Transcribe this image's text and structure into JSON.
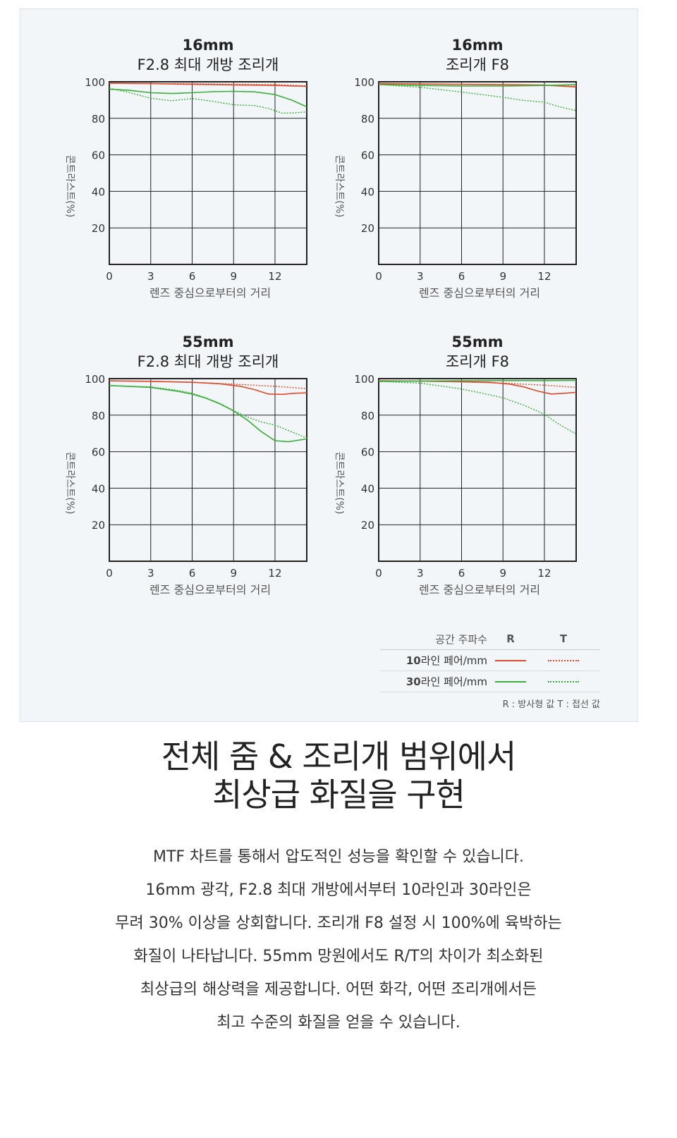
{
  "colors": {
    "red": "#e04a2a",
    "green": "#3aae3a",
    "grid": "#222222",
    "panel_bg": "#f3f6f9"
  },
  "chart_data": [
    {
      "type": "line",
      "title": "16mm",
      "subtitle": "F2.8 최대 개방 조리개",
      "xlabel": "렌즈 중심으로부터의 거리",
      "ylabel": "콘트라스트(%)",
      "xlim": [
        0,
        14.3
      ],
      "ylim": [
        0,
        100
      ],
      "xticks": [
        0,
        3,
        6,
        9,
        12
      ],
      "yticks": [
        20,
        40,
        60,
        80,
        100
      ],
      "series": [
        {
          "legend": "10라인 페어/mm R",
          "color": "red",
          "style": "solid",
          "x": [
            0,
            3,
            6,
            9,
            12,
            14.3
          ],
          "y": [
            99.2,
            99,
            98.6,
            98.3,
            98,
            97.5
          ]
        },
        {
          "legend": "10라인 페어/mm T",
          "color": "red",
          "style": "dotted",
          "x": [
            0,
            3,
            6,
            9,
            12,
            14.3
          ],
          "y": [
            99.2,
            99,
            98.9,
            98.6,
            98.4,
            97.8
          ]
        },
        {
          "legend": "30라인 페어/mm R",
          "color": "green",
          "style": "solid",
          "x": [
            0,
            1.5,
            3,
            4.5,
            6,
            7.5,
            9,
            10.5,
            12,
            13.2,
            14.3
          ],
          "y": [
            96,
            95.3,
            94,
            93.6,
            94,
            94.6,
            94.8,
            94.5,
            93,
            90,
            86.3
          ]
        },
        {
          "legend": "30라인 페어/mm T",
          "color": "green",
          "style": "dotted",
          "x": [
            0,
            1.5,
            3,
            4.5,
            6,
            7.5,
            9,
            10.5,
            11.5,
            12.5,
            13.5,
            14.3
          ],
          "y": [
            96.5,
            94,
            91,
            89.6,
            90.8,
            89.3,
            87.4,
            87,
            85.5,
            82.8,
            83,
            83.5
          ]
        }
      ]
    },
    {
      "type": "line",
      "title": "16mm",
      "subtitle": "조리개 F8",
      "xlabel": "렌즈 중심으로부터의 거리",
      "ylabel": "콘트라스트(%)",
      "xlim": [
        0,
        14.3
      ],
      "ylim": [
        0,
        100
      ],
      "xticks": [
        0,
        3,
        6,
        9,
        12
      ],
      "yticks": [
        20,
        40,
        60,
        80,
        100
      ],
      "series": [
        {
          "legend": "10라인 페어/mm R",
          "color": "red",
          "style": "solid",
          "x": [
            0,
            3,
            6,
            9,
            12,
            14.3
          ],
          "y": [
            99,
            98.8,
            98.6,
            98.4,
            98.2,
            97.2
          ]
        },
        {
          "legend": "10라인 페어/mm T",
          "color": "red",
          "style": "dotted",
          "x": [
            0,
            3,
            6,
            9,
            12,
            14.3
          ],
          "y": [
            99,
            98.8,
            98.5,
            98.3,
            98,
            97.5
          ]
        },
        {
          "legend": "30라인 페어/mm R",
          "color": "green",
          "style": "solid",
          "x": [
            0,
            3,
            6,
            9,
            12,
            14.3
          ],
          "y": [
            98.5,
            98,
            97.7,
            97.7,
            98,
            98.4
          ]
        },
        {
          "legend": "30라인 페어/mm T",
          "color": "green",
          "style": "dotted",
          "x": [
            0,
            3,
            6,
            9,
            10.5,
            12,
            13,
            14.3
          ],
          "y": [
            98.5,
            97,
            94.4,
            91.5,
            89.8,
            88.8,
            86.5,
            84.2
          ]
        }
      ]
    },
    {
      "type": "line",
      "title": "55mm",
      "subtitle": "F2.8 최대 개방 조리개",
      "xlabel": "렌즈 중심으로부터의 거리",
      "ylabel": "콘트라스트(%)",
      "xlim": [
        0,
        14.3
      ],
      "ylim": [
        0,
        100
      ],
      "xticks": [
        0,
        3,
        6,
        9,
        12
      ],
      "yticks": [
        20,
        40,
        60,
        80,
        100
      ],
      "series": [
        {
          "legend": "10라인 페어/mm R",
          "color": "red",
          "style": "solid",
          "x": [
            0,
            3,
            6,
            8,
            9.5,
            10.5,
            11.5,
            12.5,
            13.5,
            14.3
          ],
          "y": [
            98.8,
            98.5,
            98,
            97.2,
            95.8,
            94,
            91.6,
            91.4,
            92,
            92.2
          ]
        },
        {
          "legend": "10라인 페어/mm T",
          "color": "red",
          "style": "dotted",
          "x": [
            0,
            3,
            6,
            9,
            12,
            14.3
          ],
          "y": [
            98.8,
            98.6,
            98,
            97,
            95.8,
            94.5
          ]
        },
        {
          "legend": "30라인 페어/mm R",
          "color": "green",
          "style": "solid",
          "x": [
            0,
            3,
            5,
            6,
            7,
            8,
            9,
            10,
            11,
            12,
            13,
            14.3
          ],
          "y": [
            96.2,
            95.2,
            93,
            91.5,
            89.3,
            86.2,
            82.3,
            77.3,
            71,
            66,
            65.5,
            67
          ]
        },
        {
          "legend": "30라인 페어/mm T",
          "color": "green",
          "style": "dotted",
          "x": [
            0,
            3,
            5,
            6,
            7,
            8,
            9,
            10,
            11,
            12,
            13,
            14.3
          ],
          "y": [
            96.2,
            95.5,
            93.5,
            92,
            89.5,
            86.5,
            82.5,
            79,
            76.3,
            74.5,
            71.5,
            67.5
          ]
        }
      ]
    },
    {
      "type": "line",
      "title": "55mm",
      "subtitle": "조리개 F8",
      "xlabel": "렌즈 중심으로부터의 거리",
      "ylabel": "콘트라스트(%)",
      "xlim": [
        0,
        14.3
      ],
      "ylim": [
        0,
        100
      ],
      "xticks": [
        0,
        3,
        6,
        9,
        12
      ],
      "yticks": [
        20,
        40,
        60,
        80,
        100
      ],
      "series": [
        {
          "legend": "10라인 페어/mm R",
          "color": "red",
          "style": "solid",
          "x": [
            0,
            3,
            6,
            8,
            9.5,
            10.5,
            11.5,
            12.5,
            13.5,
            14.3
          ],
          "y": [
            98.8,
            98.6,
            98.3,
            98,
            97,
            95.5,
            93.2,
            91.6,
            92,
            92.5
          ]
        },
        {
          "legend": "10라인 페어/mm T",
          "color": "red",
          "style": "dotted",
          "x": [
            0,
            3,
            6,
            9,
            12,
            14.3
          ],
          "y": [
            98.8,
            98.7,
            98.2,
            97.5,
            96.4,
            95.2
          ]
        },
        {
          "legend": "30라인 페어/mm R",
          "color": "green",
          "style": "solid",
          "x": [
            0,
            3,
            6,
            9,
            12,
            14.3
          ],
          "y": [
            98.5,
            98.7,
            98.8,
            98.9,
            98.9,
            99
          ]
        },
        {
          "legend": "30라인 페어/mm T",
          "color": "green",
          "style": "dotted",
          "x": [
            0,
            3,
            4.5,
            6,
            7.5,
            9,
            10.5,
            12,
            13,
            14.3
          ],
          "y": [
            98.5,
            97.5,
            96,
            94.3,
            92,
            89.5,
            85.5,
            80.5,
            75.3,
            69.6
          ]
        }
      ]
    }
  ],
  "legend": {
    "header": "공간 주파수",
    "col_r": "R",
    "col_t": "T",
    "row1_num": "10",
    "row1_text": "라인 페어/mm",
    "row2_num": "30",
    "row2_text": "라인 페어/mm",
    "note": "R : 방사형 값 T : 접선 값"
  },
  "headline": {
    "line1": "전체 줌 & 조리개 범위에서",
    "line2": "최상급 화질을 구현"
  },
  "body": {
    "line1": "MTF 차트를 통해서 압도적인 성능을 확인할 수 있습니다.",
    "line2": "16mm 광각, F2.8 최대 개방에서부터 10라인과 30라인은",
    "line3": "무려 30% 이상을 상회합니다. 조리개 F8 설정 시 100%에 육박하는",
    "line4": "화질이 나타납니다. 55mm 망원에서도 R/T의 차이가 최소화된",
    "line5": "최상급의 해상력을 제공합니다. 어떤 화각, 어떤 조리개에서든",
    "line6": "최고 수준의 화질을 얻을 수 있습니다."
  }
}
